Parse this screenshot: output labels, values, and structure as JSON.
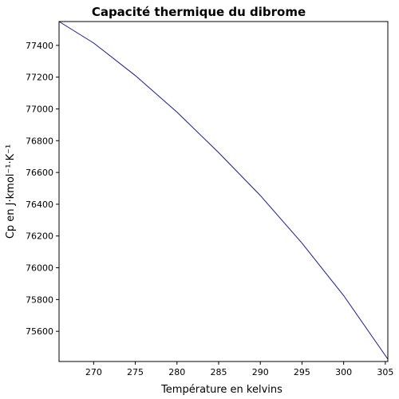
{
  "chart_data": {
    "type": "line",
    "title": "Capacité thermique du dibrome",
    "xlabel": "Température en kelvins",
    "ylabel": "Cp en J·kmol⁻¹·K⁻¹",
    "xlim": [
      265.85,
      305.3
    ],
    "ylim": [
      75410,
      77550
    ],
    "grid": false,
    "xticks": [
      270,
      275,
      280,
      285,
      290,
      295,
      300,
      305
    ],
    "yticks": [
      75600,
      75800,
      76000,
      76200,
      76400,
      76600,
      76800,
      77000,
      77200,
      77400
    ],
    "series": [
      {
        "color": "#1a1a8c",
        "x": [
          265.85,
          270,
          275,
          280,
          285,
          290,
          295,
          300,
          305.3
        ],
        "y": [
          77550,
          77415,
          77210,
          76980,
          76725,
          76455,
          76155,
          75825,
          75425
        ]
      }
    ]
  }
}
